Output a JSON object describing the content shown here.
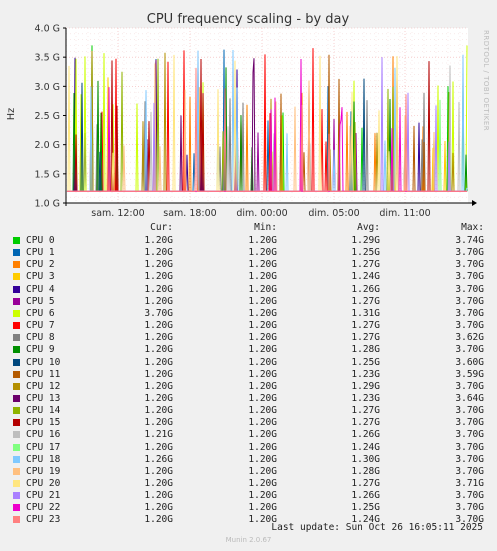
{
  "chart_data": {
    "type": "line",
    "title": "CPU frequency scaling - by day",
    "ylabel": "Hz",
    "side_text": "RRDTOOL / TOBI OETIKER",
    "ylim": [
      1.0,
      4.0
    ],
    "y_ticks": [
      "1.0 G",
      "1.5 G",
      "2.0 G",
      "2.5 G",
      "3.0 G",
      "3.5 G",
      "4.0 G"
    ],
    "y_tick_values": [
      1.0,
      1.5,
      2.0,
      2.5,
      3.0,
      3.5,
      4.0
    ],
    "x_ticks": [
      "sam. 12:00",
      "sam. 18:00",
      "dim. 00:00",
      "dim. 05:00",
      "dim. 11:00"
    ],
    "grid": true,
    "columns": {
      "cur": "Cur:",
      "min": "Min:",
      "avg": "Avg:",
      "max": "Max:"
    },
    "series": [
      {
        "name": "CPU 0",
        "color": "#00cc00",
        "cur": "1.20G",
        "min": "1.20G",
        "avg": "1.29G",
        "max": "3.74G"
      },
      {
        "name": "CPU 1",
        "color": "#0066b3",
        "cur": "1.20G",
        "min": "1.20G",
        "avg": "1.25G",
        "max": "3.70G"
      },
      {
        "name": "CPU 2",
        "color": "#ff8000",
        "cur": "1.20G",
        "min": "1.20G",
        "avg": "1.27G",
        "max": "3.70G"
      },
      {
        "name": "CPU 3",
        "color": "#ffcc00",
        "cur": "1.20G",
        "min": "1.20G",
        "avg": "1.24G",
        "max": "3.70G"
      },
      {
        "name": "CPU 4",
        "color": "#330099",
        "cur": "1.20G",
        "min": "1.20G",
        "avg": "1.26G",
        "max": "3.70G"
      },
      {
        "name": "CPU 5",
        "color": "#990099",
        "cur": "1.20G",
        "min": "1.20G",
        "avg": "1.27G",
        "max": "3.70G"
      },
      {
        "name": "CPU 6",
        "color": "#ccff00",
        "cur": "3.70G",
        "min": "1.20G",
        "avg": "1.31G",
        "max": "3.70G"
      },
      {
        "name": "CPU 7",
        "color": "#ff0000",
        "cur": "1.20G",
        "min": "1.20G",
        "avg": "1.27G",
        "max": "3.70G"
      },
      {
        "name": "CPU 8",
        "color": "#808080",
        "cur": "1.20G",
        "min": "1.20G",
        "avg": "1.27G",
        "max": "3.62G"
      },
      {
        "name": "CPU 9",
        "color": "#008f00",
        "cur": "1.20G",
        "min": "1.20G",
        "avg": "1.28G",
        "max": "3.70G"
      },
      {
        "name": "CPU 10",
        "color": "#00487d",
        "cur": "1.20G",
        "min": "1.20G",
        "avg": "1.25G",
        "max": "3.60G"
      },
      {
        "name": "CPU 11",
        "color": "#b35a00",
        "cur": "1.20G",
        "min": "1.20G",
        "avg": "1.23G",
        "max": "3.59G"
      },
      {
        "name": "CPU 12",
        "color": "#b38f00",
        "cur": "1.20G",
        "min": "1.20G",
        "avg": "1.29G",
        "max": "3.70G"
      },
      {
        "name": "CPU 13",
        "color": "#6b006b",
        "cur": "1.20G",
        "min": "1.20G",
        "avg": "1.23G",
        "max": "3.64G"
      },
      {
        "name": "CPU 14",
        "color": "#8fb300",
        "cur": "1.20G",
        "min": "1.20G",
        "avg": "1.27G",
        "max": "3.70G"
      },
      {
        "name": "CPU 15",
        "color": "#b30000",
        "cur": "1.20G",
        "min": "1.20G",
        "avg": "1.27G",
        "max": "3.70G"
      },
      {
        "name": "CPU 16",
        "color": "#bebebe",
        "cur": "1.21G",
        "min": "1.20G",
        "avg": "1.26G",
        "max": "3.70G"
      },
      {
        "name": "CPU 17",
        "color": "#80ff80",
        "cur": "1.20G",
        "min": "1.20G",
        "avg": "1.24G",
        "max": "3.70G"
      },
      {
        "name": "CPU 18",
        "color": "#80c9ff",
        "cur": "1.26G",
        "min": "1.20G",
        "avg": "1.30G",
        "max": "3.70G"
      },
      {
        "name": "CPU 19",
        "color": "#ffc080",
        "cur": "1.20G",
        "min": "1.20G",
        "avg": "1.28G",
        "max": "3.70G"
      },
      {
        "name": "CPU 20",
        "color": "#ffe680",
        "cur": "1.20G",
        "min": "1.20G",
        "avg": "1.27G",
        "max": "3.71G"
      },
      {
        "name": "CPU 21",
        "color": "#aa80ff",
        "cur": "1.20G",
        "min": "1.20G",
        "avg": "1.26G",
        "max": "3.70G"
      },
      {
        "name": "CPU 22",
        "color": "#ee00cc",
        "cur": "1.20G",
        "min": "1.20G",
        "avg": "1.25G",
        "max": "3.70G"
      },
      {
        "name": "CPU 23",
        "color": "#ff8080",
        "cur": "1.20G",
        "min": "1.20G",
        "avg": "1.24G",
        "max": "3.70G"
      }
    ]
  },
  "footer": {
    "last_update": "Last update: Sun Oct 26 16:05:11 2025",
    "version": "Munin 2.0.67"
  }
}
